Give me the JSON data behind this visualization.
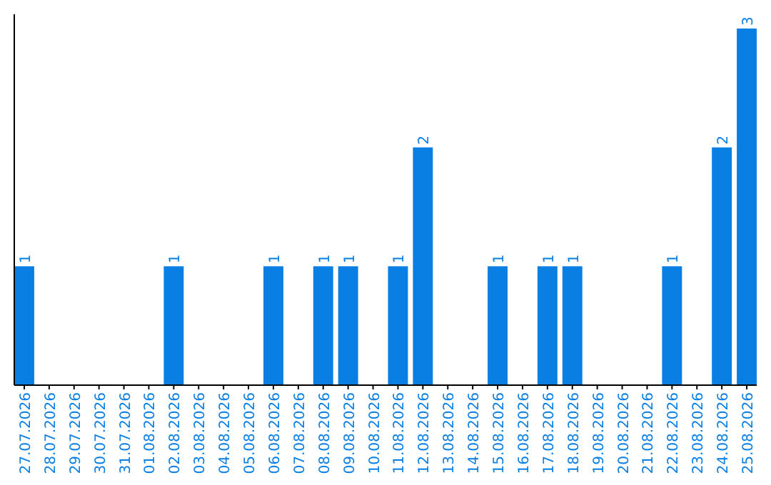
{
  "chart_data": {
    "type": "bar",
    "categories": [
      "27.07.2026",
      "28.07.2026",
      "29.07.2026",
      "30.07.2026",
      "31.07.2026",
      "01.08.2026",
      "02.08.2026",
      "03.08.2026",
      "04.08.2026",
      "05.08.2026",
      "06.08.2026",
      "07.08.2026",
      "08.08.2026",
      "09.08.2026",
      "10.08.2026",
      "11.08.2026",
      "12.08.2026",
      "13.08.2026",
      "14.08.2026",
      "15.08.2026",
      "16.08.2026",
      "17.08.2026",
      "18.08.2026",
      "19.08.2026",
      "20.08.2026",
      "21.08.2026",
      "22.08.2026",
      "23.08.2026",
      "24.08.2026",
      "25.08.2026"
    ],
    "values": [
      1,
      0,
      0,
      0,
      0,
      0,
      1,
      0,
      0,
      0,
      1,
      0,
      1,
      1,
      0,
      1,
      2,
      0,
      0,
      1,
      0,
      1,
      1,
      0,
      0,
      0,
      1,
      0,
      2,
      3
    ],
    "value_labels": [
      "1",
      null,
      null,
      null,
      null,
      null,
      "1",
      null,
      null,
      null,
      "1",
      null,
      "1",
      "1",
      null,
      "1",
      "2",
      null,
      null,
      "1",
      null,
      "1",
      "1",
      null,
      null,
      null,
      "1",
      null,
      "2",
      "3"
    ],
    "color": "#0a7fe3"
  }
}
